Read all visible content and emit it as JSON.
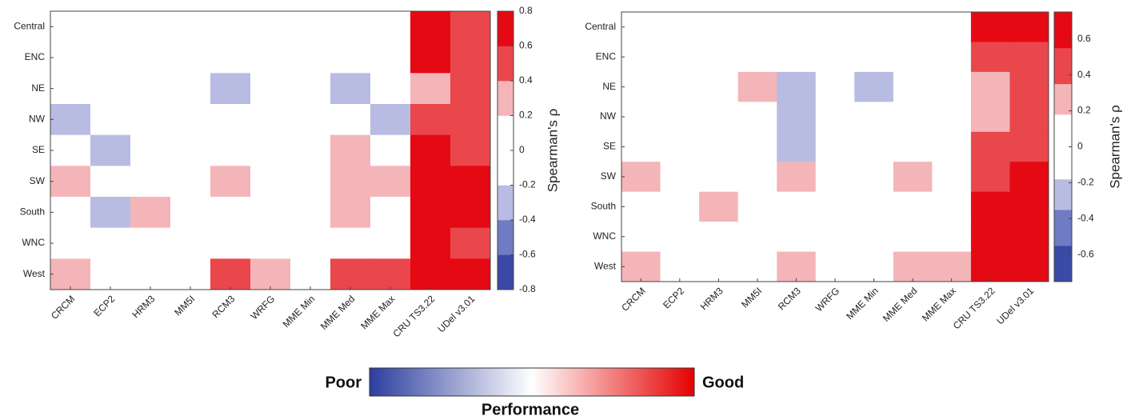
{
  "chart_data": [
    {
      "type": "heatmap",
      "x": [
        "CRCM",
        "ECP2",
        "HRM3",
        "MM5I",
        "RCM3",
        "WRFG",
        "MME Min",
        "MME Med",
        "MME Max",
        "CRU TS3.22",
        "UDel v3.01"
      ],
      "y": [
        "Central",
        "ENC",
        "NE",
        "NW",
        "SE",
        "SW",
        "South",
        "WNC",
        "West"
      ],
      "values": [
        [
          0,
          0,
          0,
          0,
          0,
          0,
          0,
          0,
          0,
          0.7,
          0.5
        ],
        [
          0,
          0,
          0,
          0,
          0,
          0,
          0,
          0,
          0,
          0.7,
          0.5
        ],
        [
          0,
          0,
          0,
          0,
          -0.3,
          0,
          0,
          -0.3,
          0,
          0.3,
          0.5
        ],
        [
          -0.3,
          0,
          0,
          0,
          0,
          0,
          0,
          0,
          -0.3,
          0.5,
          0.5
        ],
        [
          0,
          -0.3,
          0,
          0,
          0,
          0,
          0,
          0.3,
          0,
          0.7,
          0.5
        ],
        [
          0.3,
          0,
          0,
          0,
          0.3,
          0,
          0,
          0.3,
          0.3,
          0.7,
          0.7
        ],
        [
          0,
          -0.3,
          0.3,
          0,
          0,
          0,
          0,
          0.3,
          0,
          0.7,
          0.7
        ],
        [
          0,
          0,
          0,
          0,
          0,
          0,
          0,
          0,
          0,
          0.7,
          0.5
        ],
        [
          0.3,
          0,
          0,
          0,
          0.5,
          0.3,
          0,
          0.5,
          0.5,
          0.7,
          0.7
        ]
      ],
      "zlim": [
        -0.8,
        0.8
      ],
      "zticks": [
        -0.8,
        -0.6,
        -0.4,
        -0.2,
        0,
        0.2,
        0.4,
        0.6,
        0.8
      ],
      "color_bins": {
        "edges": [
          -0.8,
          -0.6,
          -0.4,
          -0.2,
          0.2,
          0.4,
          0.6,
          0.8
        ],
        "colors": [
          "#3a4aa6",
          "#6f7bc2",
          "#b8bce2",
          "#ffffff",
          "#f4b5b9",
          "#e9474c",
          "#e50913"
        ]
      },
      "colorbar_label": "Spearman's ρ"
    },
    {
      "type": "heatmap",
      "x": [
        "CRCM",
        "ECP2",
        "HRM3",
        "MM5I",
        "RCM3",
        "WRFG",
        "MME Min",
        "MME Med",
        "MME Max",
        "CRU TS3.22",
        "UDel v3.01"
      ],
      "y": [
        "Central",
        "ENC",
        "NE",
        "NW",
        "SE",
        "SW",
        "South",
        "WNC",
        "West"
      ],
      "values": [
        [
          0,
          0,
          0,
          0,
          0,
          0,
          0,
          0,
          0,
          0.65,
          0.65
        ],
        [
          0,
          0,
          0,
          0,
          0,
          0,
          0,
          0,
          0,
          0.45,
          0.45
        ],
        [
          0,
          0,
          0,
          0.3,
          -0.3,
          0,
          -0.3,
          0,
          0,
          0.3,
          0.45
        ],
        [
          0,
          0,
          0,
          0,
          -0.3,
          0,
          0,
          0,
          0,
          0.3,
          0.45
        ],
        [
          0,
          0,
          0,
          0,
          -0.3,
          0,
          0,
          0,
          0,
          0.45,
          0.45
        ],
        [
          0.3,
          0,
          0,
          0,
          0.3,
          0,
          0,
          0.3,
          0,
          0.45,
          0.65
        ],
        [
          0,
          0,
          0.3,
          0,
          0,
          0,
          0,
          0,
          0,
          0.65,
          0.65
        ],
        [
          0,
          0,
          0,
          0,
          0,
          0,
          0,
          0,
          0,
          0.65,
          0.65
        ],
        [
          0.3,
          0,
          0,
          0,
          0.3,
          0,
          0,
          0.3,
          0.3,
          0.65,
          0.65
        ]
      ],
      "zlim": [
        -0.75,
        0.75
      ],
      "zticks": [
        -0.6,
        -0.4,
        -0.2,
        0,
        0.2,
        0.4,
        0.6
      ],
      "color_bins": {
        "edges": [
          -0.75,
          -0.55,
          -0.35,
          -0.18,
          0.18,
          0.35,
          0.55,
          0.75
        ],
        "colors": [
          "#3a4aa6",
          "#6f7bc2",
          "#b8bce2",
          "#ffffff",
          "#f4b5b9",
          "#e9474c",
          "#e50913"
        ]
      },
      "colorbar_label": "Spearman's ρ"
    }
  ],
  "performance_legend": {
    "low": "Poor",
    "high": "Good",
    "title": "Performance"
  }
}
